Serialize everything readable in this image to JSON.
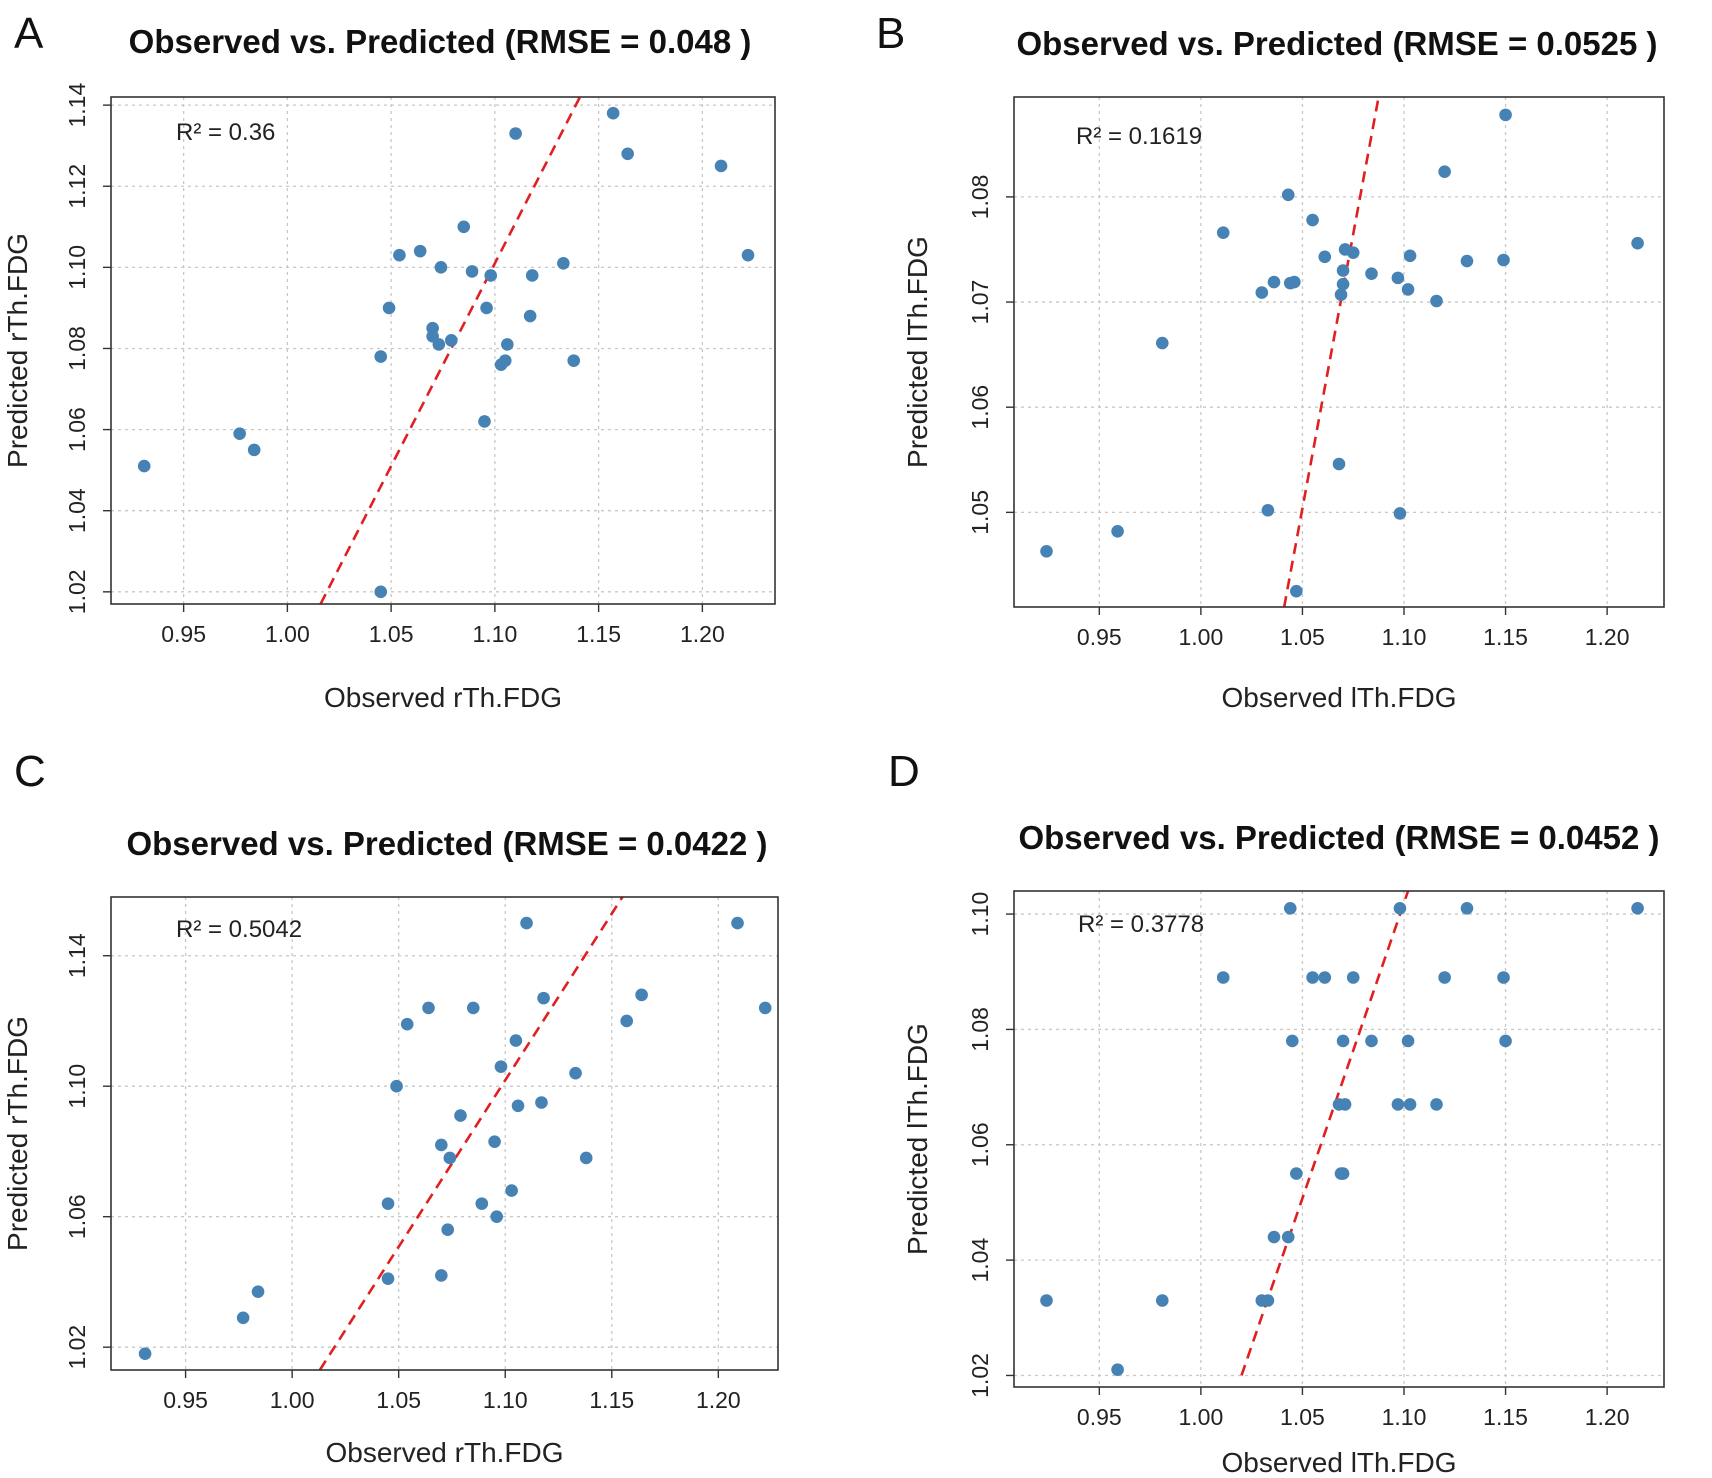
{
  "accent": {
    "point": "#4682b4",
    "fit": "#e02020"
  },
  "chart_data": [
    {
      "id": "A",
      "type": "scatter",
      "title": "Observed vs. Predicted (RMSE = 0.048 )",
      "xlabel": "Observed rTh.FDG",
      "ylabel": "Predicted rTh.FDG",
      "annotation": "R² = 0.36",
      "xlim": [
        0.915,
        1.235
      ],
      "ylim": [
        1.017,
        1.142
      ],
      "xticks": [
        "0.95",
        "1.00",
        "1.05",
        "1.10",
        "1.15",
        "1.20"
      ],
      "yticks": [
        "1.02",
        "1.04",
        "1.06",
        "1.08",
        "1.10",
        "1.12",
        "1.14"
      ],
      "grid": true,
      "fit_line": [
        [
          1.016,
          1.017
        ],
        [
          1.141,
          1.142
        ]
      ],
      "points": [
        [
          0.931,
          1.051
        ],
        [
          0.977,
          1.059
        ],
        [
          0.984,
          1.055
        ],
        [
          1.045,
          1.078
        ],
        [
          1.045,
          1.02
        ],
        [
          1.049,
          1.09
        ],
        [
          1.054,
          1.103
        ],
        [
          1.064,
          1.104
        ],
        [
          1.07,
          1.083
        ],
        [
          1.07,
          1.085
        ],
        [
          1.073,
          1.081
        ],
        [
          1.074,
          1.1
        ],
        [
          1.079,
          1.082
        ],
        [
          1.085,
          1.11
        ],
        [
          1.089,
          1.099
        ],
        [
          1.095,
          1.062
        ],
        [
          1.096,
          1.09
        ],
        [
          1.098,
          1.098
        ],
        [
          1.103,
          1.076
        ],
        [
          1.105,
          1.077
        ],
        [
          1.106,
          1.081
        ],
        [
          1.11,
          1.133
        ],
        [
          1.117,
          1.088
        ],
        [
          1.118,
          1.098
        ],
        [
          1.133,
          1.101
        ],
        [
          1.138,
          1.077
        ],
        [
          1.157,
          1.138
        ],
        [
          1.164,
          1.128
        ],
        [
          1.209,
          1.125
        ],
        [
          1.222,
          1.103
        ]
      ]
    },
    {
      "id": "B",
      "type": "scatter",
      "title": "Observed vs. Predicted (RMSE = 0.0525 )",
      "xlabel": "Observed lTh.FDG",
      "ylabel": "Predicted lTh.FDG",
      "annotation": "R² = 0.1619",
      "xlim": [
        0.908,
        1.228
      ],
      "ylim": [
        1.041,
        1.0895
      ],
      "xticks": [
        "0.95",
        "1.00",
        "1.05",
        "1.10",
        "1.15",
        "1.20"
      ],
      "yticks": [
        "1.05",
        "1.06",
        "1.07",
        "1.08"
      ],
      "grid": true,
      "fit_line": [
        [
          1.041,
          1.041
        ],
        [
          1.0875,
          1.0895
        ]
      ],
      "points": [
        [
          0.924,
          1.0463
        ],
        [
          0.959,
          1.0482
        ],
        [
          0.981,
          1.0661
        ],
        [
          1.011,
          1.0766
        ],
        [
          1.03,
          1.0709
        ],
        [
          1.033,
          1.0502
        ],
        [
          1.036,
          1.0719
        ],
        [
          1.043,
          1.0802
        ],
        [
          1.044,
          1.0718
        ],
        [
          1.046,
          1.0719
        ],
        [
          1.047,
          1.0425
        ],
        [
          1.055,
          1.0778
        ],
        [
          1.061,
          1.0743
        ],
        [
          1.068,
          1.0546
        ],
        [
          1.069,
          1.0707
        ],
        [
          1.07,
          1.073
        ],
        [
          1.07,
          1.0717
        ],
        [
          1.071,
          1.075
        ],
        [
          1.075,
          1.0747
        ],
        [
          1.084,
          1.0727
        ],
        [
          1.097,
          1.0723
        ],
        [
          1.098,
          1.0499
        ],
        [
          1.102,
          1.0712
        ],
        [
          1.103,
          1.0744
        ],
        [
          1.116,
          1.0701
        ],
        [
          1.12,
          1.0824
        ],
        [
          1.131,
          1.0739
        ],
        [
          1.149,
          1.074
        ],
        [
          1.15,
          1.0878
        ],
        [
          1.215,
          1.0756
        ]
      ]
    },
    {
      "id": "C",
      "type": "scatter",
      "title": "Observed vs. Predicted (RMSE = 0.0422 )",
      "xlabel": "Observed rTh.FDG",
      "ylabel": "Predicted rTh.FDG",
      "annotation": "R² = 0.5042",
      "xlim": [
        0.915,
        1.228
      ],
      "ylim": [
        1.013,
        1.158
      ],
      "xticks": [
        "0.95",
        "1.00",
        "1.05",
        "1.10",
        "1.15",
        "1.20"
      ],
      "yticks": [
        "1.02",
        "1.06",
        "1.10",
        "1.14"
      ],
      "grid": true,
      "fit_line": [
        [
          1.013,
          1.013
        ],
        [
          1.155,
          1.158
        ]
      ],
      "points": [
        [
          0.931,
          1.018
        ],
        [
          0.977,
          1.029
        ],
        [
          0.984,
          1.037
        ],
        [
          1.045,
          1.064
        ],
        [
          1.045,
          1.041
        ],
        [
          1.049,
          1.1
        ],
        [
          1.054,
          1.119
        ],
        [
          1.064,
          1.124
        ],
        [
          1.07,
          1.082
        ],
        [
          1.07,
          1.042
        ],
        [
          1.073,
          1.056
        ],
        [
          1.074,
          1.078
        ],
        [
          1.079,
          1.091
        ],
        [
          1.085,
          1.124
        ],
        [
          1.089,
          1.064
        ],
        [
          1.095,
          1.083
        ],
        [
          1.096,
          1.06
        ],
        [
          1.098,
          1.106
        ],
        [
          1.103,
          1.068
        ],
        [
          1.105,
          1.114
        ],
        [
          1.106,
          1.094
        ],
        [
          1.11,
          1.15
        ],
        [
          1.117,
          1.095
        ],
        [
          1.118,
          1.127
        ],
        [
          1.133,
          1.104
        ],
        [
          1.138,
          1.078
        ],
        [
          1.157,
          1.12
        ],
        [
          1.164,
          1.128
        ],
        [
          1.209,
          1.15
        ],
        [
          1.222,
          1.124
        ]
      ]
    },
    {
      "id": "D",
      "type": "scatter",
      "title": "Observed vs. Predicted (RMSE = 0.0452 )",
      "xlabel": "Observed lTh.FDG",
      "ylabel": "Predicted lTh.FDG",
      "annotation": "R² = 0.3778",
      "xlim": [
        0.908,
        1.228
      ],
      "ylim": [
        1.018,
        1.104
      ],
      "xticks": [
        "0.95",
        "1.00",
        "1.05",
        "1.10",
        "1.15",
        "1.20"
      ],
      "yticks": [
        "1.02",
        "1.04",
        "1.06",
        "1.08",
        "1.10"
      ],
      "grid": true,
      "fit_line": [
        [
          1.02,
          1.02
        ],
        [
          1.102,
          1.104
        ]
      ],
      "points": [
        [
          0.924,
          1.033
        ],
        [
          0.959,
          1.021
        ],
        [
          0.981,
          1.033
        ],
        [
          1.011,
          1.089
        ],
        [
          1.03,
          1.033
        ],
        [
          1.033,
          1.033
        ],
        [
          1.036,
          1.044
        ],
        [
          1.043,
          1.044
        ],
        [
          1.044,
          1.101
        ],
        [
          1.045,
          1.078
        ],
        [
          1.047,
          1.055
        ],
        [
          1.055,
          1.089
        ],
        [
          1.061,
          1.089
        ],
        [
          1.068,
          1.067
        ],
        [
          1.069,
          1.055
        ],
        [
          1.07,
          1.078
        ],
        [
          1.07,
          1.055
        ],
        [
          1.071,
          1.067
        ],
        [
          1.075,
          1.089
        ],
        [
          1.084,
          1.078
        ],
        [
          1.097,
          1.067
        ],
        [
          1.098,
          1.101
        ],
        [
          1.102,
          1.078
        ],
        [
          1.103,
          1.067
        ],
        [
          1.116,
          1.067
        ],
        [
          1.12,
          1.089
        ],
        [
          1.131,
          1.101
        ],
        [
          1.149,
          1.089
        ],
        [
          1.15,
          1.078
        ],
        [
          1.215,
          1.101
        ]
      ]
    }
  ]
}
